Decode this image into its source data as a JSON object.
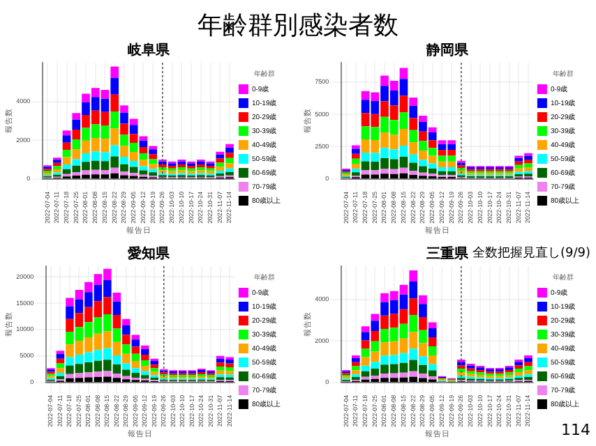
{
  "chart_data": [
    {
      "type": "other",
      "title": "年齢群別感染者数",
      "annotations": [
        "114"
      ]
    },
    {
      "type": "bar",
      "title": "岐阜県",
      "xlabel": "報告日",
      "ylabel": "報告数",
      "legend_title": "年齢群",
      "legend": "right",
      "grid": true,
      "stacked": true,
      "categories": [
        "2022-07-04",
        "2022-07-11",
        "2022-07-18",
        "2022-07-25",
        "2022-08-01",
        "2022-08-08",
        "2022-08-15",
        "2022-08-22",
        "2022-08-29",
        "2022-09-05",
        "2022-09-12",
        "2022-09-19",
        "2022-09-26",
        "2022-10-03",
        "2022-10-10",
        "2022-10-17",
        "2022-10-24",
        "2022-10-31",
        "2022-11-07",
        "2022-11-14"
      ],
      "ylim": [
        0,
        6000
      ],
      "yticks": [
        0,
        2000,
        4000
      ],
      "ref_lines": [
        {
          "axis": "x",
          "value": "2022-09-26",
          "line_style": "dotted",
          "color": "#555555"
        }
      ],
      "series": [
        {
          "name": "80歳以上",
          "color": "#000000",
          "values": [
            35,
            55,
            125,
            170,
            220,
            235,
            230,
            290,
            190,
            155,
            110,
            85,
            50,
            45,
            50,
            45,
            50,
            45,
            70,
            90
          ]
        },
        {
          "name": "70-79歳",
          "color": "#ee82ee",
          "values": [
            35,
            55,
            125,
            170,
            220,
            235,
            230,
            290,
            190,
            155,
            110,
            85,
            50,
            45,
            50,
            45,
            50,
            45,
            70,
            90
          ]
        },
        {
          "name": "60-69歳",
          "color": "#006400",
          "values": [
            70,
            110,
            250,
            340,
            440,
            470,
            460,
            580,
            380,
            310,
            220,
            170,
            100,
            90,
            100,
            90,
            100,
            90,
            140,
            180
          ]
        },
        {
          "name": "50-59歳",
          "color": "#00ffff",
          "values": [
            70,
            110,
            250,
            340,
            440,
            470,
            460,
            580,
            380,
            310,
            220,
            170,
            100,
            90,
            100,
            90,
            100,
            90,
            140,
            180
          ]
        },
        {
          "name": "40-49歳",
          "color": "#ffa500",
          "values": [
            105,
            165,
            375,
            510,
            660,
            705,
            690,
            870,
            570,
            465,
            330,
            255,
            150,
            135,
            150,
            135,
            150,
            135,
            210,
            270
          ]
        },
        {
          "name": "30-39歳",
          "color": "#00ff00",
          "values": [
            105,
            165,
            375,
            510,
            660,
            705,
            690,
            870,
            570,
            465,
            330,
            255,
            150,
            135,
            150,
            135,
            150,
            135,
            210,
            270
          ]
        },
        {
          "name": "20-29歳",
          "color": "#ff0000",
          "values": [
            105,
            165,
            375,
            510,
            660,
            705,
            690,
            870,
            570,
            465,
            330,
            255,
            150,
            135,
            150,
            135,
            150,
            135,
            210,
            270
          ]
        },
        {
          "name": "10-19歳",
          "color": "#0000ff",
          "values": [
            105,
            165,
            375,
            510,
            660,
            705,
            690,
            870,
            570,
            465,
            330,
            255,
            150,
            135,
            150,
            135,
            150,
            135,
            210,
            270
          ]
        },
        {
          "name": "0-9歳",
          "color": "#ff00ff",
          "values": [
            70,
            110,
            250,
            340,
            440,
            470,
            460,
            580,
            380,
            310,
            220,
            170,
            100,
            90,
            100,
            90,
            100,
            90,
            140,
            180
          ]
        }
      ]
    },
    {
      "type": "bar",
      "title": "静岡県",
      "xlabel": "報告日",
      "ylabel": "報告数",
      "legend_title": "年齢群",
      "legend": "right",
      "grid": true,
      "stacked": true,
      "categories": [
        "2022-07-04",
        "2022-07-11",
        "2022-07-18",
        "2022-07-25",
        "2022-08-01",
        "2022-08-08",
        "2022-08-15",
        "2022-08-22",
        "2022-08-29",
        "2022-09-05",
        "2022-09-12",
        "2022-09-19",
        "2022-09-26",
        "2022-10-03",
        "2022-10-10",
        "2022-10-17",
        "2022-10-24",
        "2022-10-31",
        "2022-11-07",
        "2022-11-14"
      ],
      "ylim": [
        0,
        9000
      ],
      "yticks": [
        0,
        2500,
        5000,
        7500
      ],
      "ref_lines": [
        {
          "axis": "x",
          "value": "2022-09-26",
          "line_style": "dotted",
          "color": "#555555"
        }
      ],
      "series": [
        {
          "name": "80歳以上",
          "color": "#000000",
          "values": [
            40,
            130,
            340,
            335,
            400,
            380,
            430,
            315,
            245,
            200,
            150,
            150,
            70,
            50,
            50,
            50,
            50,
            50,
            90,
            100
          ]
        },
        {
          "name": "70-79歳",
          "color": "#ee82ee",
          "values": [
            40,
            130,
            340,
            335,
            400,
            380,
            430,
            315,
            245,
            200,
            150,
            150,
            70,
            50,
            50,
            50,
            50,
            50,
            90,
            100
          ]
        },
        {
          "name": "60-69歳",
          "color": "#006400",
          "values": [
            80,
            260,
            680,
            670,
            800,
            760,
            860,
            630,
            490,
            400,
            300,
            300,
            140,
            100,
            100,
            100,
            100,
            100,
            180,
            200
          ]
        },
        {
          "name": "50-59歳",
          "color": "#00ffff",
          "values": [
            80,
            260,
            680,
            670,
            800,
            760,
            860,
            630,
            490,
            400,
            300,
            300,
            140,
            100,
            100,
            100,
            100,
            100,
            180,
            200
          ]
        },
        {
          "name": "40-49歳",
          "color": "#ffa500",
          "values": [
            120,
            390,
            1020,
            1005,
            1200,
            1140,
            1290,
            945,
            735,
            600,
            450,
            450,
            210,
            150,
            150,
            150,
            150,
            150,
            270,
            300
          ]
        },
        {
          "name": "30-39歳",
          "color": "#00ff00",
          "values": [
            120,
            390,
            1020,
            1005,
            1200,
            1140,
            1290,
            945,
            735,
            600,
            450,
            450,
            210,
            150,
            150,
            150,
            150,
            150,
            270,
            300
          ]
        },
        {
          "name": "20-29歳",
          "color": "#ff0000",
          "values": [
            120,
            390,
            1020,
            1005,
            1200,
            1140,
            1290,
            945,
            735,
            600,
            450,
            450,
            210,
            150,
            150,
            150,
            150,
            150,
            270,
            300
          ]
        },
        {
          "name": "10-19歳",
          "color": "#0000ff",
          "values": [
            120,
            390,
            1020,
            1005,
            1200,
            1140,
            1290,
            945,
            735,
            600,
            450,
            450,
            210,
            150,
            150,
            150,
            150,
            150,
            270,
            300
          ]
        },
        {
          "name": "0-9歳",
          "color": "#ff00ff",
          "values": [
            80,
            260,
            680,
            670,
            800,
            760,
            860,
            630,
            490,
            400,
            300,
            300,
            140,
            100,
            100,
            100,
            100,
            100,
            180,
            200
          ]
        }
      ]
    },
    {
      "type": "bar",
      "title": "愛知県",
      "xlabel": "報告日",
      "ylabel": "報告数",
      "legend_title": "年齢群",
      "legend": "right",
      "grid": true,
      "stacked": true,
      "categories": [
        "2022-07-04",
        "2022-07-11",
        "2022-07-18",
        "2022-07-25",
        "2022-08-01",
        "2022-08-08",
        "2022-08-15",
        "2022-08-22",
        "2022-08-29",
        "2022-09-05",
        "2022-09-12",
        "2022-09-19",
        "2022-09-26",
        "2022-10-03",
        "2022-10-10",
        "2022-10-17",
        "2022-10-24",
        "2022-10-31",
        "2022-11-07",
        "2022-11-14"
      ],
      "ylim": [
        0,
        22000
      ],
      "yticks": [
        0,
        5000,
        10000,
        15000,
        20000
      ],
      "ref_lines": [
        {
          "axis": "x",
          "value": "2022-09-26",
          "line_style": "dotted",
          "color": "#555555"
        }
      ],
      "series": [
        {
          "name": "80歳以上",
          "color": "#000000",
          "values": [
            135,
            300,
            800,
            875,
            950,
            1025,
            1075,
            850,
            600,
            450,
            350,
            225,
            125,
            115,
            115,
            115,
            130,
            115,
            250,
            240
          ]
        },
        {
          "name": "70-79歳",
          "color": "#ee82ee",
          "values": [
            135,
            300,
            800,
            875,
            950,
            1025,
            1075,
            850,
            600,
            450,
            350,
            225,
            125,
            115,
            115,
            115,
            130,
            115,
            250,
            240
          ]
        },
        {
          "name": "60-69歳",
          "color": "#006400",
          "values": [
            270,
            600,
            1600,
            1750,
            1900,
            2050,
            2150,
            1700,
            1200,
            900,
            700,
            450,
            250,
            230,
            230,
            230,
            260,
            230,
            500,
            480
          ]
        },
        {
          "name": "50-59歳",
          "color": "#00ffff",
          "values": [
            270,
            600,
            1600,
            1750,
            1900,
            2050,
            2150,
            1700,
            1200,
            900,
            700,
            450,
            250,
            230,
            230,
            230,
            260,
            230,
            500,
            480
          ]
        },
        {
          "name": "40-49歳",
          "color": "#ffa500",
          "values": [
            405,
            900,
            2400,
            2625,
            2850,
            3075,
            3225,
            2550,
            1800,
            1350,
            1050,
            675,
            375,
            345,
            345,
            345,
            390,
            345,
            750,
            720
          ]
        },
        {
          "name": "30-39歳",
          "color": "#00ff00",
          "values": [
            405,
            900,
            2400,
            2625,
            2850,
            3075,
            3225,
            2550,
            1800,
            1350,
            1050,
            675,
            375,
            345,
            345,
            345,
            390,
            345,
            750,
            720
          ]
        },
        {
          "name": "20-29歳",
          "color": "#ff0000",
          "values": [
            405,
            900,
            2400,
            2625,
            2850,
            3075,
            3225,
            2550,
            1800,
            1350,
            1050,
            675,
            375,
            345,
            345,
            345,
            390,
            345,
            750,
            720
          ]
        },
        {
          "name": "10-19歳",
          "color": "#0000ff",
          "values": [
            405,
            900,
            2400,
            2625,
            2850,
            3075,
            3225,
            2550,
            1800,
            1350,
            1050,
            675,
            375,
            345,
            345,
            345,
            390,
            345,
            750,
            720
          ]
        },
        {
          "name": "0-9歳",
          "color": "#ff00ff",
          "values": [
            270,
            600,
            1600,
            1750,
            1900,
            2050,
            2150,
            1700,
            1200,
            900,
            700,
            450,
            250,
            230,
            230,
            230,
            260,
            230,
            500,
            480
          ]
        }
      ]
    },
    {
      "type": "bar",
      "title": "三重県",
      "xlabel": "報告日",
      "ylabel": "報告数",
      "legend_title": "年齢群",
      "legend": "right",
      "grid": true,
      "stacked": true,
      "annotations": [
        "全数把握見直し(9/9)"
      ],
      "categories": [
        "2022-07-04",
        "2022-07-11",
        "2022-07-18",
        "2022-07-25",
        "2022-08-01",
        "2022-08-08",
        "2022-08-15",
        "2022-08-22",
        "2022-08-29",
        "2022-09-05",
        "2022-09-12",
        "2022-09-19",
        "2022-09-26",
        "2022-10-03",
        "2022-10-10",
        "2022-10-17",
        "2022-10-24",
        "2022-10-31",
        "2022-11-07",
        "2022-11-14"
      ],
      "ylim": [
        0,
        5600
      ],
      "yticks": [
        0,
        2000,
        4000
      ],
      "ref_lines": [
        {
          "axis": "x",
          "value": "2022-09-26",
          "line_style": "dotted",
          "color": "#555555"
        }
      ],
      "series": [
        {
          "name": "80歳以上",
          "color": "#000000",
          "values": [
            30,
            65,
            135,
            165,
            215,
            220,
            235,
            270,
            210,
            145,
            15,
            10,
            55,
            45,
            40,
            35,
            35,
            40,
            55,
            65
          ]
        },
        {
          "name": "70-79歳",
          "color": "#ee82ee",
          "values": [
            30,
            65,
            135,
            165,
            215,
            220,
            235,
            270,
            210,
            145,
            15,
            10,
            55,
            45,
            40,
            35,
            35,
            40,
            55,
            65
          ]
        },
        {
          "name": "60-69歳",
          "color": "#006400",
          "values": [
            60,
            130,
            270,
            330,
            430,
            440,
            470,
            540,
            420,
            290,
            30,
            20,
            110,
            90,
            80,
            70,
            70,
            80,
            110,
            130
          ]
        },
        {
          "name": "50-59歳",
          "color": "#00ffff",
          "values": [
            60,
            130,
            270,
            330,
            430,
            440,
            470,
            540,
            420,
            290,
            30,
            20,
            110,
            90,
            80,
            70,
            70,
            80,
            110,
            130
          ]
        },
        {
          "name": "40-49歳",
          "color": "#ffa500",
          "values": [
            90,
            195,
            405,
            495,
            645,
            660,
            705,
            810,
            630,
            435,
            45,
            30,
            165,
            135,
            120,
            105,
            105,
            120,
            165,
            195
          ]
        },
        {
          "name": "30-39歳",
          "color": "#00ff00",
          "values": [
            90,
            195,
            405,
            495,
            645,
            660,
            705,
            810,
            630,
            435,
            45,
            30,
            165,
            135,
            120,
            105,
            105,
            120,
            165,
            195
          ]
        },
        {
          "name": "20-29歳",
          "color": "#ff0000",
          "values": [
            90,
            195,
            405,
            495,
            645,
            660,
            705,
            810,
            630,
            435,
            45,
            30,
            165,
            135,
            120,
            105,
            105,
            120,
            165,
            195
          ]
        },
        {
          "name": "10-19歳",
          "color": "#0000ff",
          "values": [
            90,
            195,
            405,
            495,
            645,
            660,
            705,
            810,
            630,
            435,
            45,
            30,
            165,
            135,
            120,
            105,
            105,
            120,
            165,
            195
          ]
        },
        {
          "name": "0-9歳",
          "color": "#ff00ff",
          "values": [
            60,
            130,
            270,
            330,
            430,
            440,
            470,
            540,
            420,
            290,
            30,
            20,
            110,
            90,
            80,
            70,
            70,
            80,
            110,
            130
          ]
        }
      ]
    }
  ]
}
